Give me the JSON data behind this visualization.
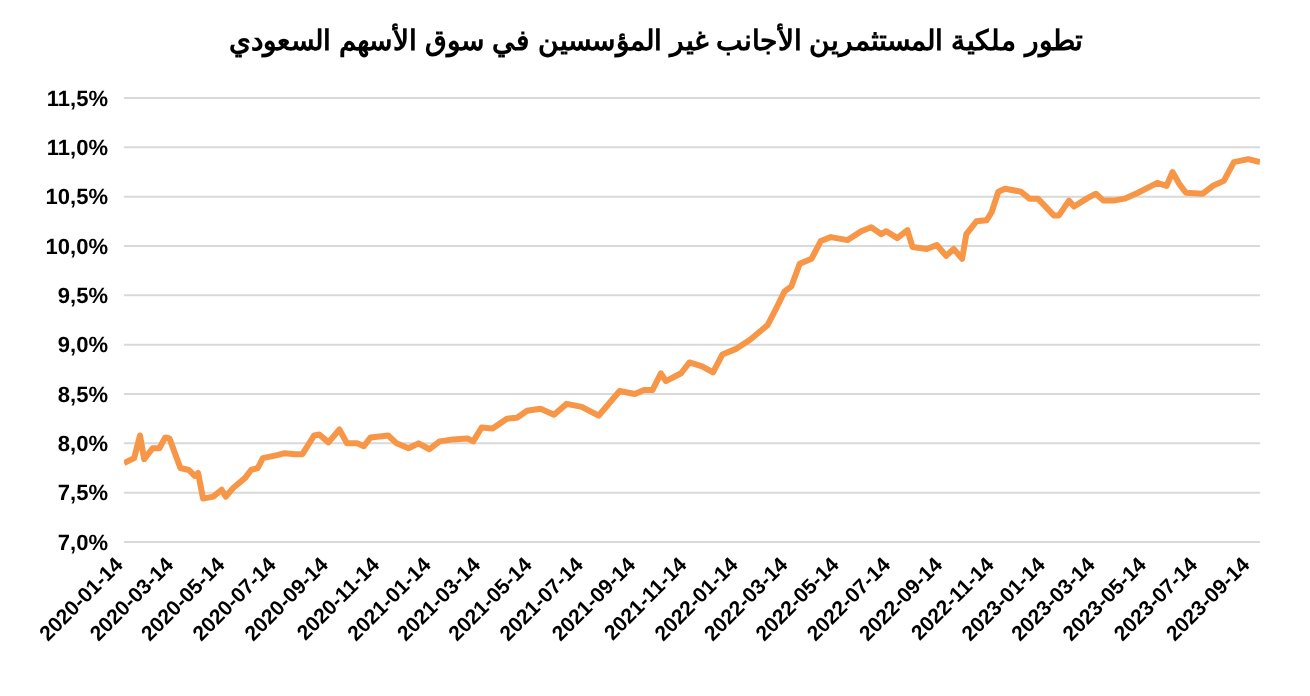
{
  "chart_data": {
    "type": "line",
    "title": "تطور ملكية المستثمرين الأجانب غير المؤسسين في سوق الأسهم السعودي",
    "x": [
      "2020-01-14",
      "2020-01-26",
      "2020-02-02",
      "2020-02-07",
      "2020-02-17",
      "2020-02-25",
      "2020-03-03",
      "2020-03-08",
      "2020-03-21",
      "2020-03-31",
      "2020-04-07",
      "2020-04-11",
      "2020-04-17",
      "2020-04-29",
      "2020-05-09",
      "2020-05-14",
      "2020-05-23",
      "2020-06-06",
      "2020-06-13",
      "2020-06-21",
      "2020-06-27",
      "2020-07-14",
      "2020-07-23",
      "2020-08-04",
      "2020-08-13",
      "2020-08-27",
      "2020-09-02",
      "2020-09-13",
      "2020-09-26",
      "2020-10-05",
      "2020-10-17",
      "2020-10-25",
      "2020-11-02",
      "2020-11-23",
      "2020-12-03",
      "2020-12-17",
      "2020-12-29",
      "2021-01-11",
      "2021-01-23",
      "2021-02-08",
      "2021-02-25",
      "2021-03-04",
      "2021-03-14",
      "2021-03-27",
      "2021-04-13",
      "2021-04-25",
      "2021-05-07",
      "2021-05-23",
      "2021-06-08",
      "2021-06-23",
      "2021-07-11",
      "2021-07-31",
      "2021-08-25",
      "2021-09-12",
      "2021-09-23",
      "2021-10-03",
      "2021-10-13",
      "2021-10-19",
      "2021-11-06",
      "2021-11-16",
      "2021-12-01",
      "2021-12-14",
      "2021-12-25",
      "2022-01-11",
      "2022-01-27",
      "2022-02-17",
      "2022-03-01",
      "2022-03-09",
      "2022-03-17",
      "2022-03-27",
      "2022-04-10",
      "2022-04-21",
      "2022-05-03",
      "2022-05-23",
      "2022-06-08",
      "2022-06-20",
      "2022-07-02",
      "2022-07-08",
      "2022-07-21",
      "2022-08-02",
      "2022-08-08",
      "2022-08-25",
      "2022-09-06",
      "2022-09-17",
      "2022-09-26",
      "2022-10-06",
      "2022-10-11",
      "2022-10-23",
      "2022-11-04",
      "2022-11-10",
      "2022-11-18",
      "2022-11-26",
      "2022-12-15",
      "2022-12-25",
      "2023-01-04",
      "2023-01-23",
      "2023-01-29",
      "2023-02-10",
      "2023-02-16",
      "2023-03-03",
      "2023-03-14",
      "2023-03-23",
      "2023-04-04",
      "2023-04-17",
      "2023-05-03",
      "2023-05-26",
      "2023-06-06",
      "2023-06-13",
      "2023-06-21",
      "2023-06-29",
      "2023-07-19",
      "2023-07-31",
      "2023-08-13",
      "2023-08-25",
      "2023-09-11",
      "2023-09-25"
    ],
    "series": [
      {
        "color": "#f79646",
        "values": [
          7.8,
          7.85,
          8.08,
          7.84,
          7.95,
          7.95,
          8.06,
          8.05,
          7.75,
          7.73,
          7.67,
          7.7,
          7.44,
          7.46,
          7.53,
          7.46,
          7.55,
          7.65,
          7.73,
          7.75,
          7.85,
          7.88,
          7.9,
          7.89,
          7.89,
          8.08,
          8.09,
          8.01,
          8.14,
          8.0,
          8.0,
          7.97,
          8.06,
          8.08,
          8.0,
          7.95,
          8.0,
          7.94,
          8.02,
          8.04,
          8.05,
          8.02,
          8.16,
          8.15,
          8.25,
          8.26,
          8.33,
          8.35,
          8.29,
          8.4,
          8.37,
          8.28,
          8.53,
          8.5,
          8.54,
          8.54,
          8.71,
          8.63,
          8.71,
          8.82,
          8.78,
          8.72,
          8.9,
          8.96,
          9.05,
          9.2,
          9.4,
          9.54,
          9.59,
          9.82,
          9.87,
          10.05,
          10.09,
          10.06,
          10.15,
          10.19,
          10.12,
          10.15,
          10.08,
          10.16,
          9.99,
          9.97,
          10.01,
          9.9,
          9.97,
          9.87,
          10.12,
          10.25,
          10.26,
          10.34,
          10.55,
          10.58,
          10.55,
          10.48,
          10.48,
          10.31,
          10.31,
          10.46,
          10.4,
          10.48,
          10.53,
          10.46,
          10.46,
          10.48,
          10.54,
          10.64,
          10.61,
          10.75,
          10.63,
          10.54,
          10.53,
          10.61,
          10.66,
          10.85,
          10.88,
          10.85
        ]
      }
    ],
    "xlim": [
      "2020-01-14",
      "2023-09-25"
    ],
    "xticks": [
      "2020-01-14",
      "2020-03-14",
      "2020-05-14",
      "2020-07-14",
      "2020-09-14",
      "2020-11-14",
      "2021-01-14",
      "2021-03-14",
      "2021-05-14",
      "2021-07-14",
      "2021-09-14",
      "2021-11-14",
      "2022-01-14",
      "2022-03-14",
      "2022-05-14",
      "2022-07-14",
      "2022-09-14",
      "2022-11-14",
      "2023-01-14",
      "2023-03-14",
      "2023-05-14",
      "2023-07-14",
      "2023-09-14"
    ],
    "ylim": [
      7,
      11.5
    ],
    "yticks": [
      {
        "value": 7,
        "label": "7,0%"
      },
      {
        "value": 7.5,
        "label": "7,5%"
      },
      {
        "value": 8,
        "label": "8,0%"
      },
      {
        "value": 8.5,
        "label": "8,5%"
      },
      {
        "value": 9,
        "label": "9,0%"
      },
      {
        "value": 9.5,
        "label": "9,5%"
      },
      {
        "value": 10,
        "label": "10,0%"
      },
      {
        "value": 10.5,
        "label": "10,5%"
      },
      {
        "value": 11,
        "label": "11,0%"
      },
      {
        "value": 11.5,
        "label": "11,5%"
      }
    ],
    "grid": "y",
    "legend": false,
    "marker": "none",
    "line_style": "solid"
  }
}
